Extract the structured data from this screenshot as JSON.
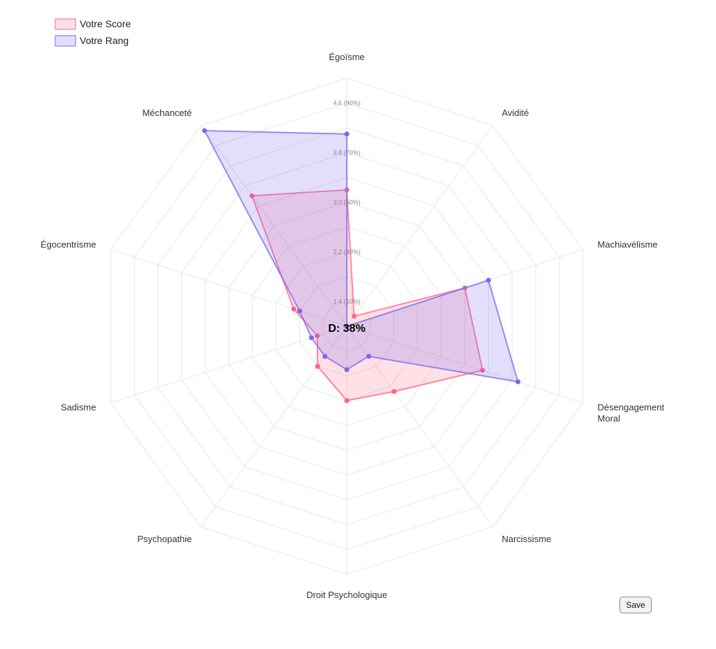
{
  "chart_data": {
    "type": "radar",
    "axes": [
      "Égoïsme",
      "Avidité",
      "Machiavélisme",
      "Désengagement Moral",
      "Narcissisme",
      "Droit Psychologique",
      "Psychopathie",
      "Sadisme",
      "Égocentrisme",
      "Méchanceté"
    ],
    "axis_label_lines": [
      [
        "Égoïsme"
      ],
      [
        "Avidité"
      ],
      [
        "Machiavélisme"
      ],
      [
        "Désengagement",
        "Moral"
      ],
      [
        "Narcissisme"
      ],
      [
        "Droit Psychologique"
      ],
      [
        "Psychopathie"
      ],
      [
        "Sadisme"
      ],
      [
        "Égocentrisme"
      ],
      [
        "Méchanceté"
      ]
    ],
    "scale": {
      "min": 1,
      "max": 5,
      "rings": 10
    },
    "tick_labels": [
      {
        "value": 1.4,
        "text": "1.4  (10%)"
      },
      {
        "value": 2.2,
        "text": "2.2  (30%)"
      },
      {
        "value": 3.0,
        "text": "3.0  (50%)"
      },
      {
        "value": 3.8,
        "text": "3.8  (70%)"
      },
      {
        "value": 4.6,
        "text": "4.6  (90%)"
      }
    ],
    "series": [
      {
        "name": "Votre Score",
        "color": "#ff6384",
        "fill": "rgba(255,99,132,0.2)",
        "values": [
          3.2,
          1.2,
          3.0,
          3.3,
          2.3,
          2.2,
          1.8,
          1.5,
          1.9,
          3.6
        ]
      },
      {
        "name": "Votre Rang",
        "color": "#7b68ee",
        "fill": "rgba(123,104,238,0.22)",
        "values": [
          4.1,
          1.0,
          3.4,
          3.9,
          1.6,
          1.7,
          1.6,
          1.6,
          1.8,
          4.9
        ]
      }
    ],
    "center_label": "D: 38%",
    "legend_position": "top-left",
    "grid": true
  },
  "controls": {
    "save_label": "Save"
  }
}
